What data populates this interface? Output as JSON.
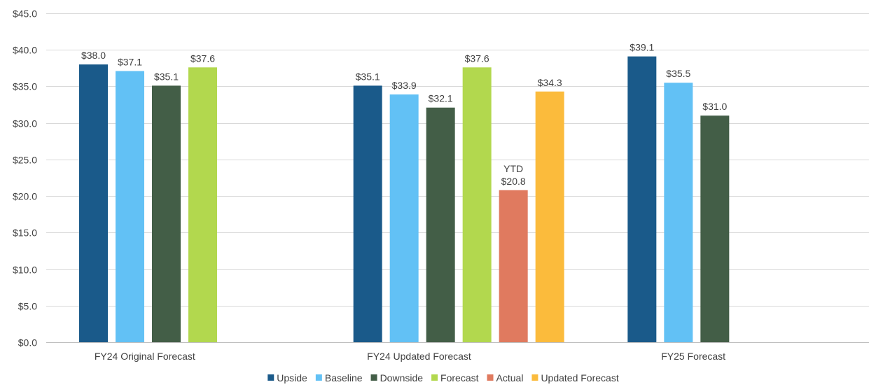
{
  "chart_data": {
    "type": "bar",
    "title": "",
    "xlabel": "",
    "ylabel": "",
    "ylim": [
      0,
      45
    ],
    "y_tick_step": 5,
    "y_tick_prefix": "$",
    "y_tick_decimals": 1,
    "grid": true,
    "legend_position": "bottom",
    "categories": [
      "FY24 Original Forecast",
      "FY24 Updated Forecast",
      "FY25 Forecast"
    ],
    "series": [
      {
        "name": "Upside",
        "color": "#1a5a8a",
        "values": [
          38.0,
          35.1,
          39.1
        ],
        "labels": [
          "$38.0",
          "$35.1",
          "$39.1"
        ]
      },
      {
        "name": "Baseline",
        "color": "#62c1f5",
        "values": [
          37.1,
          33.9,
          35.5
        ],
        "labels": [
          "$37.1",
          "$33.9",
          "$35.5"
        ]
      },
      {
        "name": "Downside",
        "color": "#435e47",
        "values": [
          35.1,
          32.1,
          31.0
        ],
        "labels": [
          "$35.1",
          "$32.1",
          "$31.0"
        ]
      },
      {
        "name": "Forecast",
        "color": "#b2d84e",
        "values": [
          37.6,
          37.6,
          null
        ],
        "labels": [
          "$37.6",
          "$37.6",
          null
        ]
      },
      {
        "name": "Actual",
        "color": "#e07a5f",
        "values": [
          null,
          20.8,
          null
        ],
        "labels": [
          null,
          "$20.8",
          null
        ],
        "label_prefix": [
          null,
          "YTD",
          null
        ]
      },
      {
        "name": "Updated Forecast",
        "color": "#fbbb3c",
        "values": [
          null,
          34.3,
          null
        ],
        "labels": [
          null,
          "$34.3",
          null
        ]
      }
    ]
  }
}
